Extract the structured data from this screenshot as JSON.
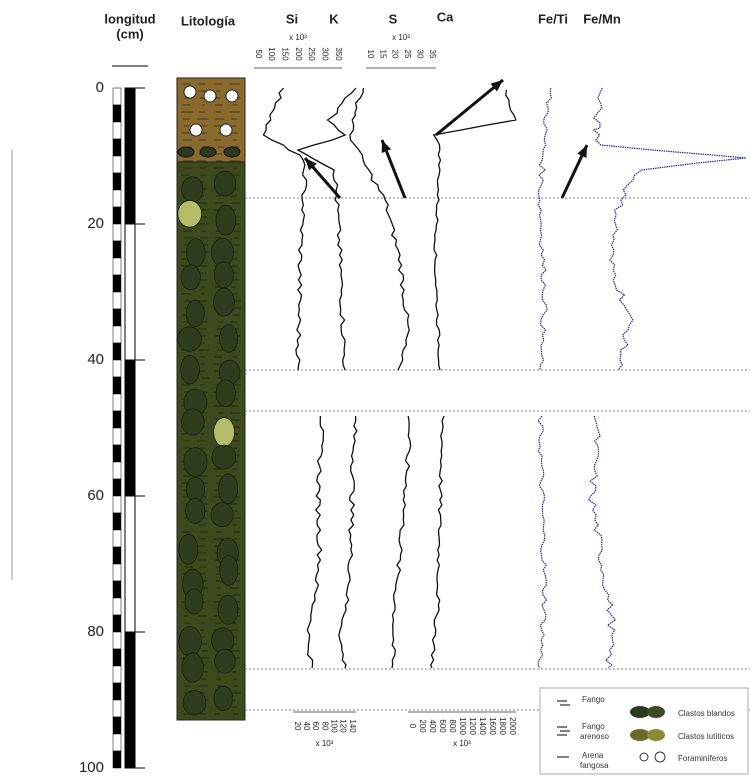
{
  "header": {
    "depth_title": [
      "longitud",
      "(cm)"
    ],
    "lithology_title": "Litología"
  },
  "depth_axis": {
    "range": [
      0,
      100
    ],
    "ticks": [
      0,
      20,
      40,
      60,
      80,
      100
    ]
  },
  "columns": [
    "Si",
    "K",
    "S",
    "Ca",
    "Fe/Ti",
    "Fe/Mn"
  ],
  "top_scales": {
    "si": {
      "unit": "x 10³",
      "ticks": [
        "50",
        "100",
        "150",
        "200",
        "250",
        "300",
        "350"
      ]
    },
    "s": {
      "unit": "x 10³",
      "ticks": [
        "10",
        "15",
        "20",
        "25",
        "30",
        "35"
      ]
    }
  },
  "bottom_scales": {
    "k": {
      "unit": "x 10³",
      "ticks": [
        "20",
        "40",
        "60",
        "80",
        "100",
        "120",
        "140"
      ]
    },
    "ca": {
      "unit": "x 10³",
      "ticks": [
        "0",
        "200",
        "400",
        "600",
        "800",
        "1000",
        "1200",
        "1400",
        "1600",
        "1800",
        "2000"
      ]
    }
  },
  "legend": {
    "fango": "Fango",
    "fango_arenoso": [
      "Fango",
      "arenoso"
    ],
    "arena_fangosa": [
      "Arena",
      "fangosa"
    ],
    "clastos_blandos": "Clastos blandos",
    "clastos_luticos": "Clastos lutíticos",
    "foraminiferos": "Foraminíferos"
  }
}
